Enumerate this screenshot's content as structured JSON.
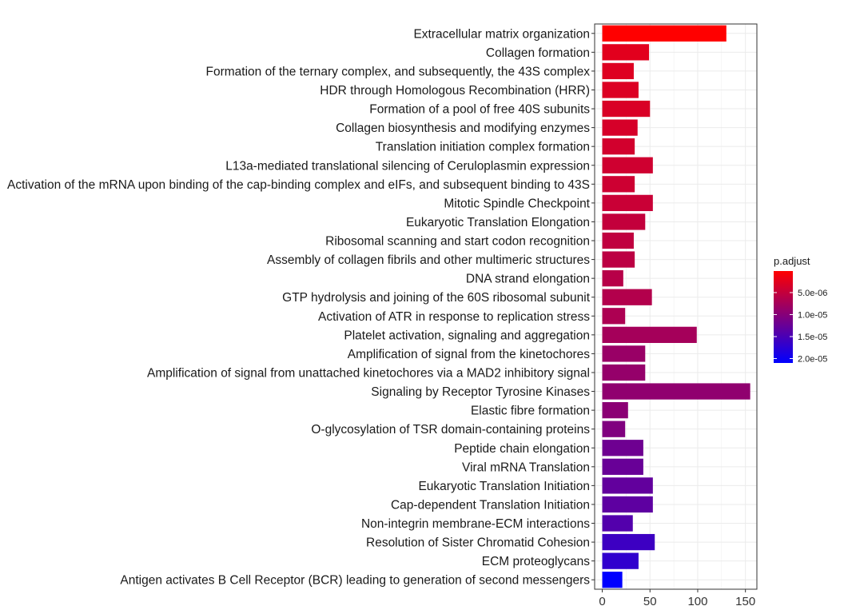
{
  "chart_data": {
    "type": "bar",
    "orientation": "horizontal",
    "categories": [
      "Extracellular matrix organization",
      "Collagen formation",
      "Formation of the ternary complex, and subsequently, the 43S complex",
      "HDR through Homologous Recombination (HRR)",
      "Formation of a pool of free 40S subunits",
      "Collagen biosynthesis and modifying enzymes",
      "Translation initiation complex formation",
      "L13a-mediated translational silencing of Ceruloplasmin expression",
      "Activation of the mRNA upon binding of the cap-binding complex and eIFs, and subsequent binding to 43S",
      "Mitotic Spindle Checkpoint",
      "Eukaryotic Translation Elongation",
      "Ribosomal scanning and start codon recognition",
      "Assembly of collagen fibrils and other multimeric structures",
      "DNA strand elongation",
      "GTP hydrolysis and joining of the 60S ribosomal subunit",
      "Activation of ATR in response to replication stress",
      "Platelet activation, signaling and aggregation",
      "Amplification of signal from the kinetochores",
      "Amplification  of signal from unattached  kinetochores via a MAD2  inhibitory signal",
      "Signaling by Receptor Tyrosine Kinases",
      "Elastic fibre formation",
      "O-glycosylation of TSR domain-containing proteins",
      "Peptide chain elongation",
      "Viral mRNA Translation",
      "Eukaryotic Translation Initiation",
      "Cap-dependent Translation Initiation",
      "Non-integrin membrane-ECM interactions",
      "Resolution of Sister Chromatid Cohesion",
      "ECM proteoglycans",
      "Antigen activates B Cell Receptor (BCR) leading to generation of second messengers"
    ],
    "values": [
      130,
      49,
      33,
      38,
      50,
      37,
      34,
      53,
      34,
      53,
      45,
      33,
      34,
      22,
      52,
      24,
      99,
      45,
      45,
      155,
      27,
      24,
      43,
      43,
      53,
      53,
      32,
      55,
      38,
      21
    ],
    "p_adjust": [
      1e-07,
      2.5e-06,
      2.8e-06,
      3e-06,
      3.2e-06,
      3.5e-06,
      3.8e-06,
      4e-06,
      4.2e-06,
      4.5e-06,
      5e-06,
      5.3e-06,
      5.6e-06,
      6e-06,
      6.3e-06,
      6.8e-06,
      7.5e-06,
      8.5e-06,
      8.8e-06,
      9.2e-06,
      9.6e-06,
      1.05e-05,
      1.2e-05,
      1.25e-05,
      1.3e-05,
      1.33e-05,
      1.42e-05,
      1.6e-05,
      1.7e-05,
      2.1e-05
    ],
    "xlim": [
      -8,
      162
    ],
    "xticks": [
      0,
      50,
      100,
      150
    ],
    "xtick_labels": [
      "0",
      "50",
      "100",
      "150"
    ],
    "xlabel": "",
    "ylabel": "",
    "grid": true,
    "legend": {
      "title": "p.adjust",
      "placement": "right",
      "range": [
        1e-07,
        2.1e-05
      ],
      "low_color": "#ff0000",
      "high_color": "#0000ff",
      "ticks": [
        5e-06,
        1e-05,
        1.5e-05,
        2e-05
      ],
      "tick_labels": [
        "5.0e-06",
        "1.0e-05",
        "1.5e-05",
        "2.0e-05"
      ]
    }
  }
}
